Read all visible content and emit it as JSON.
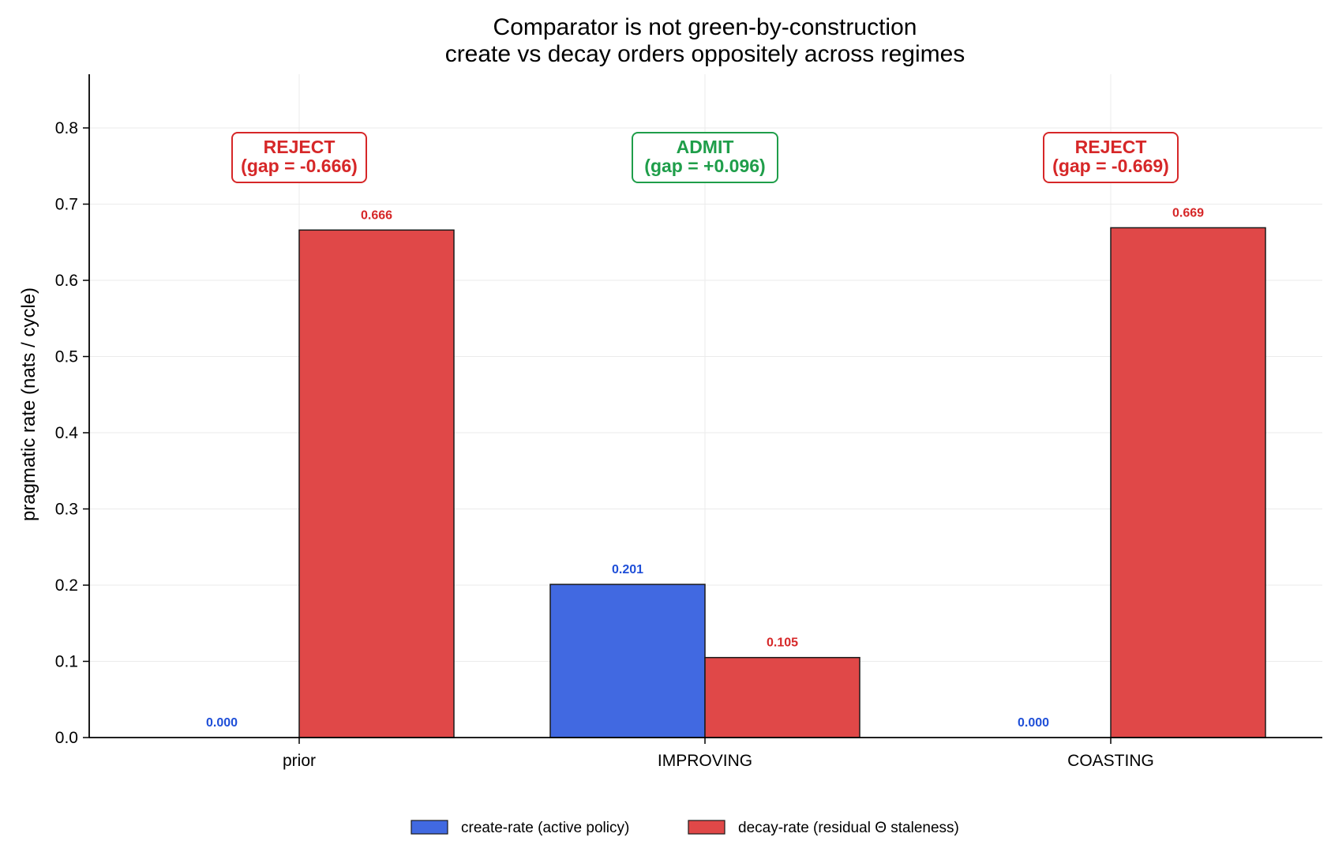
{
  "chart_data": {
    "type": "bar",
    "title": "Comparator is not green-by-construction",
    "subtitle": "create vs decay orders oppositely across regimes",
    "xlabel": "",
    "ylabel": "pragmatic rate (nats / cycle)",
    "categories": [
      "prior",
      "IMPROVING",
      "COASTING"
    ],
    "series": [
      {
        "name": "create-rate (active policy)",
        "color": "#4169e1",
        "values": [
          0.0,
          0.201,
          0.0
        ],
        "value_labels": [
          "0.000",
          "0.201",
          "0.000"
        ],
        "label_color": "#1f4fd8"
      },
      {
        "name": "decay-rate (residual Θ staleness)",
        "color": "#e04848",
        "values": [
          0.666,
          0.105,
          0.669
        ],
        "value_labels": [
          "0.666",
          "0.105",
          "0.669"
        ],
        "label_color": "#d62728"
      }
    ],
    "verdicts": [
      {
        "line1": "REJECT",
        "line2": "(gap = -0.666)",
        "color": "#d62728"
      },
      {
        "line1": "ADMIT",
        "line2": "(gap = +0.096)",
        "color": "#1f9e4a"
      },
      {
        "line1": "REJECT",
        "line2": "(gap = -0.669)",
        "color": "#d62728"
      }
    ],
    "ylim": [
      0,
      0.87
    ],
    "yticks": [
      0.0,
      0.1,
      0.2,
      0.3,
      0.4,
      0.5,
      0.6,
      0.7,
      0.8
    ],
    "ytick_labels": [
      "0.0",
      "0.1",
      "0.2",
      "0.3",
      "0.4",
      "0.5",
      "0.6",
      "0.7",
      "0.8"
    ],
    "grid": true,
    "legend_position": "bottom-center"
  }
}
